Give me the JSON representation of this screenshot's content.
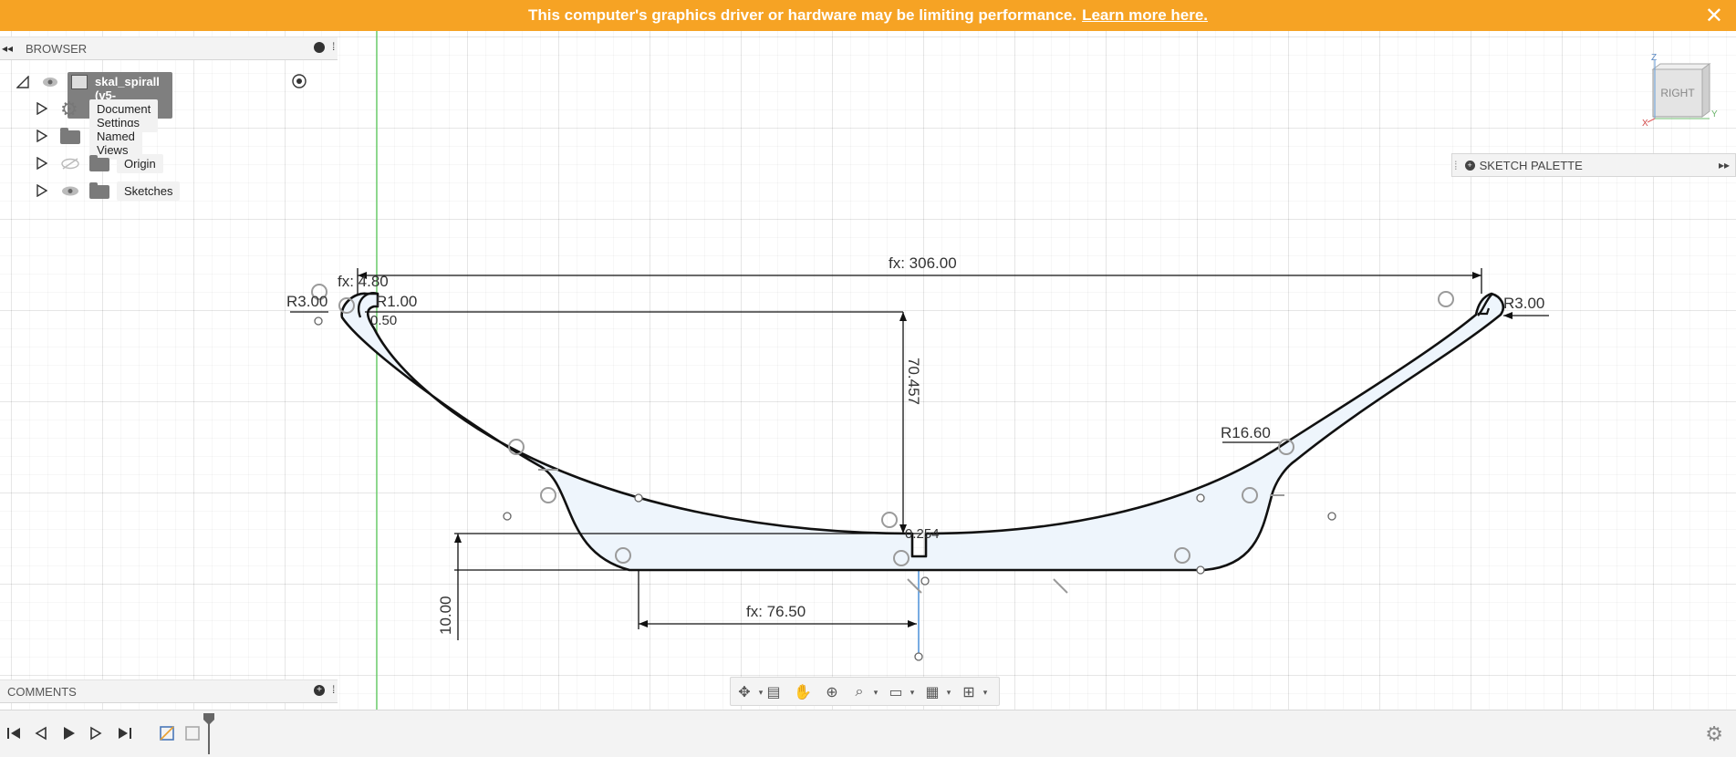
{
  "banner": {
    "message": "This computer's graphics driver or hardware may be limiting performance.",
    "link": "Learn more here.",
    "close": "✕"
  },
  "browser": {
    "title": "BROWSER",
    "collapse_glyph": "◂◂",
    "root": {
      "label": "skal_spirall (v5-recovered)"
    },
    "items": [
      {
        "label": "Document Settings",
        "icon": "gear-icon"
      },
      {
        "label": "Named Views",
        "icon": "folder-icon"
      },
      {
        "label": "Origin",
        "icon": "folder-icon",
        "visibility": "hidden"
      },
      {
        "label": "Sketches",
        "icon": "folder-icon",
        "visibility": "visible"
      }
    ]
  },
  "comments": {
    "title": "COMMENTS"
  },
  "sketch_palette": {
    "title": "SKETCH PALETTE",
    "expand_glyph": "▸▸"
  },
  "view_cube": {
    "face": "RIGHT",
    "axis_z": "Z",
    "axis_y": "Y",
    "axis_x": "X"
  },
  "dimensions": {
    "top_width": "fx: 306.00",
    "left_small_width": "fx: 4.80",
    "left_radius_outer": "R3.00",
    "left_radius_inner": "R1.00",
    "left_small": "0.50",
    "right_radius": "R3.00",
    "depth": "70.457",
    "bottom_half": "fx: 76.50",
    "base_thickness": "10.00",
    "fillet": "R16.60",
    "center_small": "0.254"
  },
  "colors": {
    "banner": "#f6a324",
    "profile_fill": "#eef5fc",
    "profile_stroke": "#111111",
    "axis_green": "#6fcf6f",
    "axis_blue": "#4a90d9"
  }
}
